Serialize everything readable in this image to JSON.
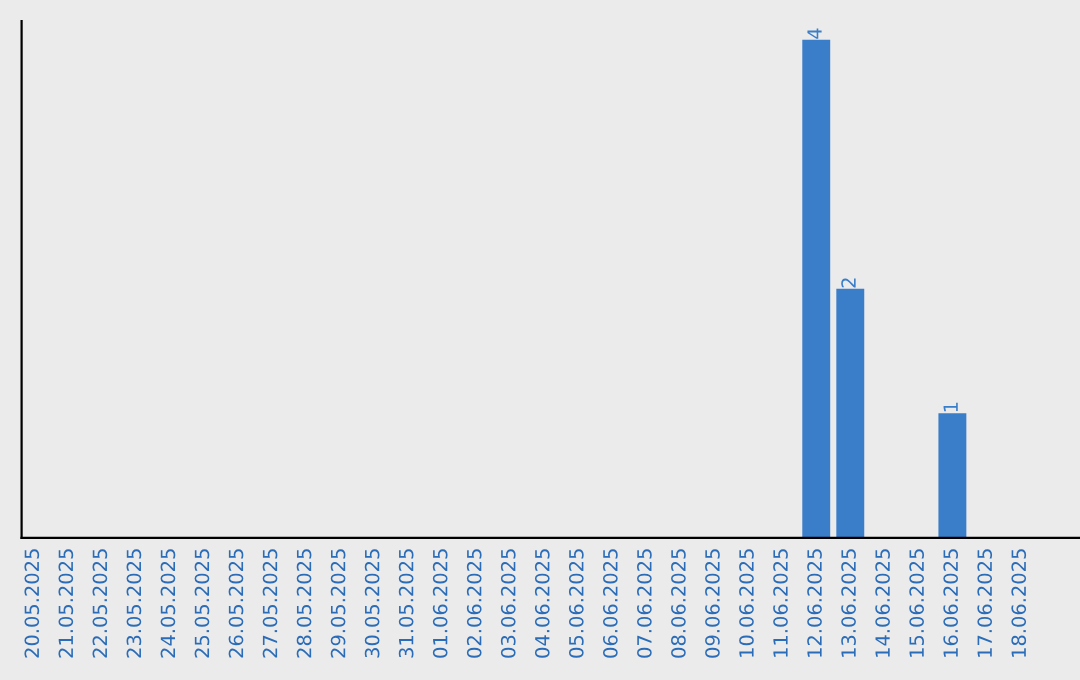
{
  "chart_data": {
    "type": "bar",
    "categories": [
      "20.05.2025",
      "21.05.2025",
      "22.05.2025",
      "23.05.2025",
      "24.05.2025",
      "25.05.2025",
      "26.05.2025",
      "27.05.2025",
      "28.05.2025",
      "29.05.2025",
      "30.05.2025",
      "31.05.2025",
      "01.06.2025",
      "02.06.2025",
      "03.06.2025",
      "04.06.2025",
      "05.06.2025",
      "06.06.2025",
      "07.06.2025",
      "08.06.2025",
      "09.06.2025",
      "10.06.2025",
      "11.06.2025",
      "12.06.2025",
      "13.06.2025",
      "14.06.2025",
      "15.06.2025",
      "16.06.2025",
      "17.06.2025",
      "18.06.2025"
    ],
    "values": [
      null,
      null,
      null,
      null,
      null,
      null,
      null,
      null,
      null,
      null,
      null,
      null,
      null,
      null,
      null,
      null,
      null,
      null,
      null,
      null,
      null,
      null,
      null,
      4,
      2,
      null,
      null,
      1,
      null,
      null
    ],
    "data_labels": true,
    "ylim": [
      0,
      4.15
    ],
    "color": "#3a7dc9",
    "tick_labels": "x",
    "grid": false,
    "legend": false
  }
}
